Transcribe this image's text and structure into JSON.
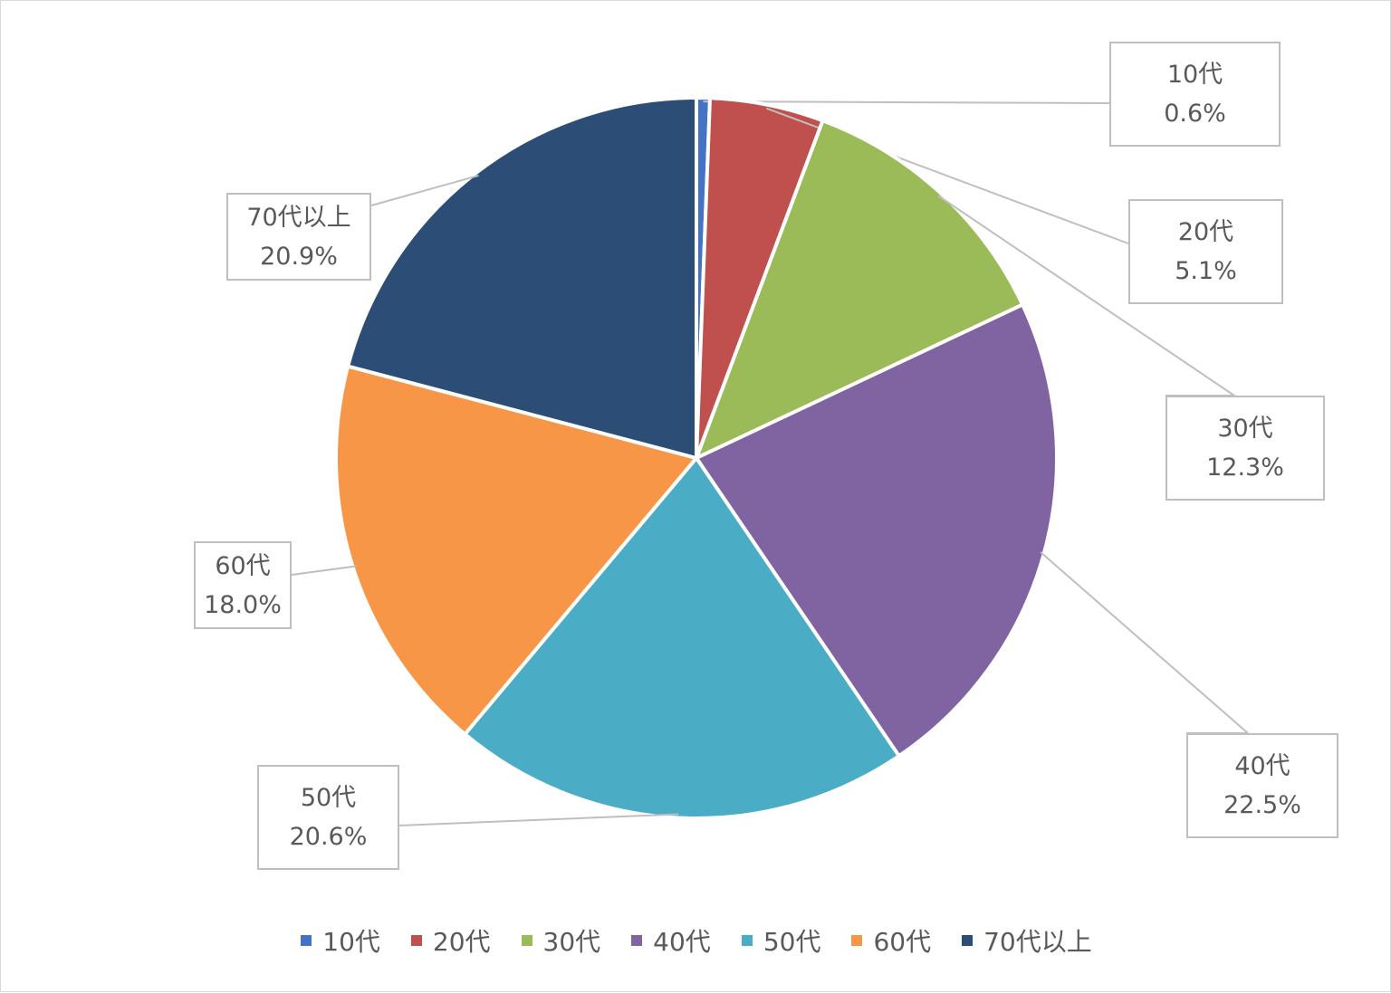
{
  "chart_data": {
    "type": "pie",
    "title": "",
    "legend_position": "bottom",
    "slices": [
      {
        "label": "10代",
        "value": 0.6,
        "value_label": "0.6%",
        "color": "#4472C4"
      },
      {
        "label": "20代",
        "value": 5.1,
        "value_label": "5.1%",
        "color": "#C0504D"
      },
      {
        "label": "30代",
        "value": 12.3,
        "value_label": "12.3%",
        "color": "#9BBB59"
      },
      {
        "label": "40代",
        "value": 22.5,
        "value_label": "22.5%",
        "color": "#8064A2"
      },
      {
        "label": "50代",
        "value": 20.6,
        "value_label": "20.6%",
        "color": "#4BACC6"
      },
      {
        "label": "60代",
        "value": 18.0,
        "value_label": "18.0%",
        "color": "#F79646"
      },
      {
        "label": "70代以上",
        "value": 20.9,
        "value_label": "20.9%",
        "color": "#2C4D75"
      }
    ]
  }
}
